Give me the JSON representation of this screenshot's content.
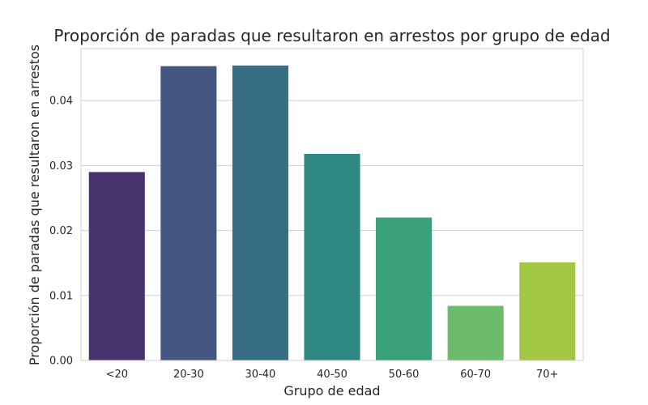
{
  "chart_data": {
    "type": "bar",
    "title": "Proporción de paradas que resultaron en arrestos por grupo de edad",
    "xlabel": "Grupo de edad",
    "ylabel": "Proporción de paradas que resultaron en arrestos",
    "categories": [
      "<20",
      "20-30",
      "30-40",
      "40-50",
      "50-60",
      "60-70",
      "70+"
    ],
    "values": [
      0.029,
      0.0453,
      0.0454,
      0.0318,
      0.022,
      0.0084,
      0.0151
    ],
    "colors": [
      "#48336f",
      "#445682",
      "#376e83",
      "#2e8780",
      "#3aa079",
      "#6cbc6b",
      "#a2c843"
    ],
    "ylim": [
      0,
      0.048
    ],
    "yticks": [
      0,
      0.01,
      0.02,
      0.03,
      0.04
    ],
    "ytick_labels": [
      "0.00",
      "0.01",
      "0.02",
      "0.03",
      "0.04"
    ],
    "grid": "horizontal",
    "legend": "none"
  }
}
